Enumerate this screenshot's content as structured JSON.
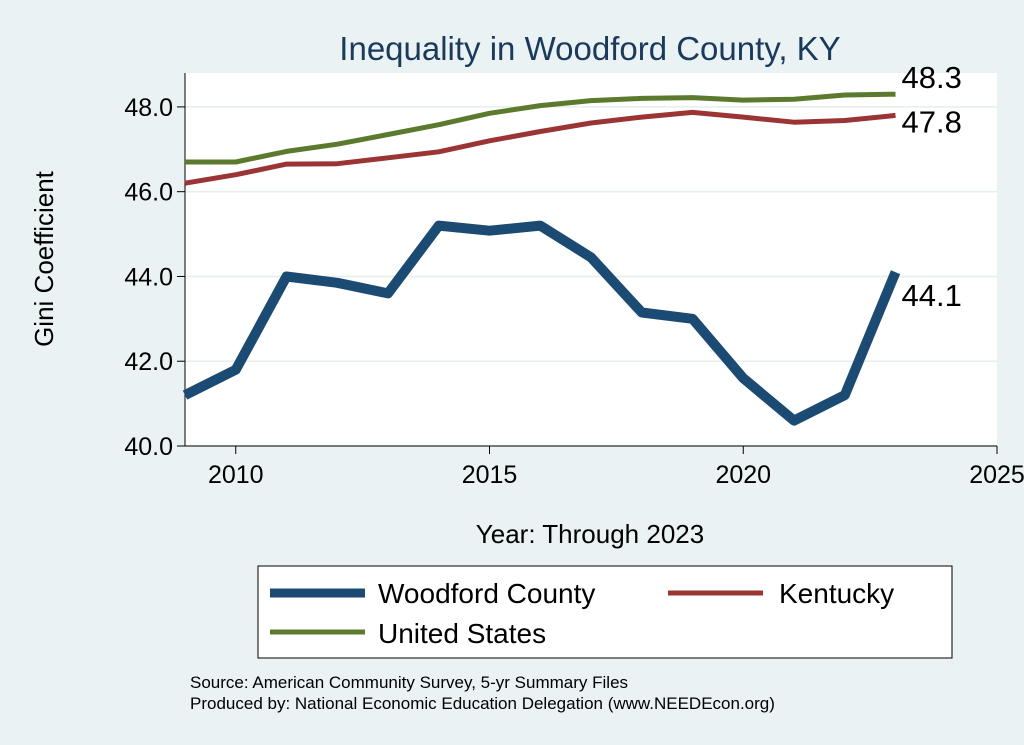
{
  "chart_data": {
    "type": "line",
    "title": "Inequality in Woodford County, KY",
    "xlabel": "Year: Through 2023",
    "ylabel": "Gini Coefficient",
    "xlim": [
      2009,
      2025
    ],
    "ylim": [
      40.0,
      48.8
    ],
    "xticks": [
      2010,
      2015,
      2020,
      2025
    ],
    "yticks": [
      40.0,
      42.0,
      44.0,
      46.0,
      48.0
    ],
    "ytick_labels": [
      "40.0",
      "42.0",
      "44.0",
      "46.0",
      "48.0"
    ],
    "grid": "horizontal",
    "legend_position": "bottom",
    "x": [
      2009,
      2010,
      2011,
      2012,
      2013,
      2014,
      2015,
      2016,
      2017,
      2018,
      2019,
      2020,
      2021,
      2022,
      2023
    ],
    "series": [
      {
        "name": "Woodford County",
        "color": "#1b4a72",
        "values": [
          41.2,
          41.8,
          44.0,
          43.85,
          43.6,
          45.2,
          45.08,
          45.2,
          44.45,
          43.15,
          43.0,
          41.6,
          40.6,
          41.2,
          44.1
        ],
        "end_label": "44.1"
      },
      {
        "name": "Kentucky",
        "color": "#9b3535",
        "values": [
          46.2,
          46.4,
          46.65,
          46.66,
          46.8,
          46.94,
          47.2,
          47.42,
          47.62,
          47.76,
          47.87,
          47.76,
          47.64,
          47.68,
          47.8
        ],
        "end_label": "47.8"
      },
      {
        "name": "United States",
        "color": "#5b7a2e",
        "values": [
          46.7,
          46.7,
          46.95,
          47.12,
          47.35,
          47.58,
          47.85,
          48.03,
          48.15,
          48.2,
          48.22,
          48.16,
          48.18,
          48.28,
          48.3
        ],
        "end_label": "48.3"
      }
    ]
  },
  "source": {
    "line1": "Source: American Community Survey, 5-yr Summary Files",
    "line2": "Produced by: National Economic Education Delegation (www.NEEDEcon.org)"
  }
}
